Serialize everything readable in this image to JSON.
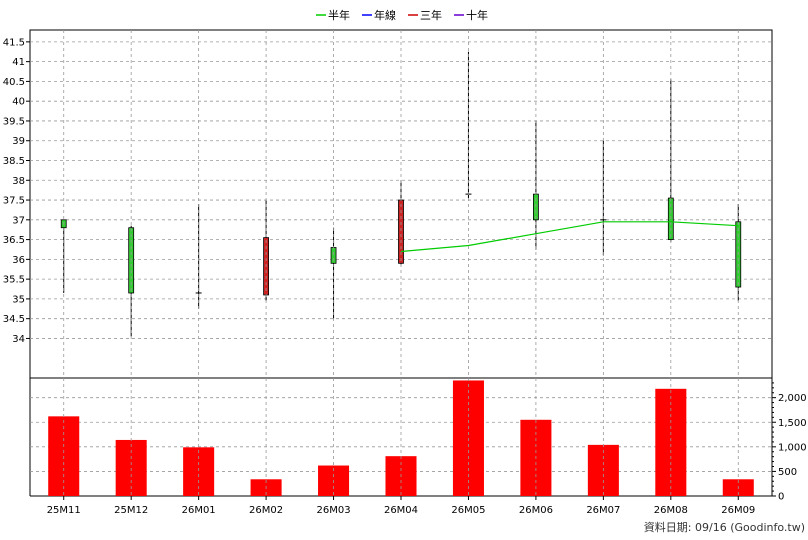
{
  "legend": [
    {
      "label": "半年",
      "color": "#00cc00"
    },
    {
      "label": "年線",
      "color": "#0000ff"
    },
    {
      "label": "三年",
      "color": "#cc0000"
    },
    {
      "label": "十年",
      "color": "#6600cc"
    }
  ],
  "footer": "資料日期: 09/16  (Goodinfo.tw)",
  "colors": {
    "up_candle": "#33cc33",
    "down_candle": "#cc2222",
    "volume_bar": "#ff0000",
    "half_year_line": "#00cc00",
    "grid": "#999999"
  },
  "chart_data": [
    {
      "type": "candlestick",
      "categories": [
        "25M11",
        "25M12",
        "26M01",
        "26M02",
        "26M03",
        "26M04",
        "26M05",
        "26M06",
        "26M07",
        "26M08",
        "26M09"
      ],
      "ylim": [
        33.0,
        41.8
      ],
      "y_ticks": [
        34,
        34.5,
        35,
        35.5,
        36,
        36.5,
        37,
        37.5,
        38,
        38.5,
        39,
        39.5,
        40,
        40.5,
        41,
        41.5
      ],
      "y_tick_labels": [
        "34",
        "34.5",
        "35",
        "35.5",
        "36",
        "36.5",
        "37",
        "37.5",
        "38",
        "38.5",
        "39",
        "39.5",
        "40",
        "40.5",
        "41",
        "41.5"
      ],
      "grid": true,
      "legend_position": "top-center",
      "ohlc": [
        {
          "open": 36.8,
          "high": 37.0,
          "low": 35.15,
          "close": 37.0
        },
        {
          "open": 35.15,
          "high": 36.85,
          "low": 34.05,
          "close": 36.8
        },
        {
          "open": 35.15,
          "high": 37.4,
          "low": 34.75,
          "close": 35.15
        },
        {
          "open": 36.55,
          "high": 37.5,
          "low": 34.95,
          "close": 35.1
        },
        {
          "open": 35.9,
          "high": 36.8,
          "low": 34.5,
          "close": 36.3
        },
        {
          "open": 37.5,
          "high": 38.0,
          "low": 35.85,
          "close": 35.9
        },
        {
          "open": 37.65,
          "high": 41.25,
          "low": 37.55,
          "close": 37.65
        },
        {
          "open": 37.0,
          "high": 39.5,
          "low": 36.25,
          "close": 37.65
        },
        {
          "open": 37.0,
          "high": 39.0,
          "low": 36.1,
          "close": 37.0
        },
        {
          "open": 36.5,
          "high": 40.55,
          "low": 36.45,
          "close": 37.55
        },
        {
          "open": 35.3,
          "high": 37.4,
          "low": 34.95,
          "close": 36.95
        }
      ],
      "series": [
        {
          "name": "半年",
          "values": [
            null,
            null,
            null,
            null,
            null,
            36.2,
            36.35,
            36.65,
            36.95,
            36.95,
            36.85
          ]
        }
      ]
    },
    {
      "type": "bar",
      "categories": [
        "25M11",
        "25M12",
        "26M01",
        "26M02",
        "26M03",
        "26M04",
        "26M05",
        "26M06",
        "26M07",
        "26M08",
        "26M09"
      ],
      "values": [
        1620,
        1140,
        990,
        340,
        620,
        810,
        2350,
        1550,
        1040,
        2180,
        340
      ],
      "ylim": [
        0,
        2400
      ],
      "y_ticks": [
        0,
        500,
        1000,
        1500,
        2000
      ],
      "y_tick_labels": [
        "0",
        "500",
        "1,000",
        "1,500",
        "2,000"
      ],
      "grid": true
    }
  ]
}
